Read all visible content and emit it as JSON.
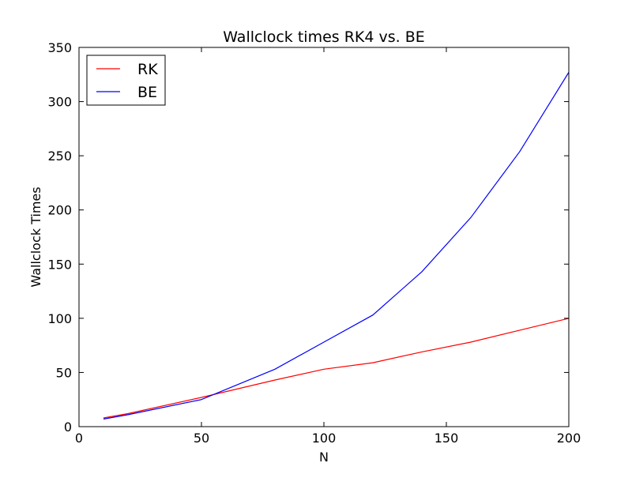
{
  "chart_data": {
    "type": "line",
    "title": "Wallclock times RK4 vs. BE",
    "xlabel": "N",
    "ylabel": "Wallclock Times",
    "xlim": [
      0,
      200
    ],
    "ylim": [
      0,
      350
    ],
    "xticks": [
      0,
      50,
      100,
      150,
      200
    ],
    "yticks": [
      0,
      50,
      100,
      150,
      200,
      250,
      300,
      350
    ],
    "grid": false,
    "legend_position": "top-left",
    "series": [
      {
        "name": "RK",
        "color": "#ff0000",
        "x": [
          10,
          20,
          50,
          80,
          100,
          120,
          140,
          160,
          180,
          200
        ],
        "y": [
          8,
          12,
          27,
          43,
          53,
          59,
          69,
          78,
          89,
          100
        ]
      },
      {
        "name": "BE",
        "color": "#0000ff",
        "x": [
          10,
          20,
          50,
          80,
          100,
          120,
          140,
          160,
          180,
          200
        ],
        "y": [
          7,
          11,
          25,
          53,
          78,
          103,
          143,
          193,
          254,
          327
        ]
      }
    ]
  }
}
